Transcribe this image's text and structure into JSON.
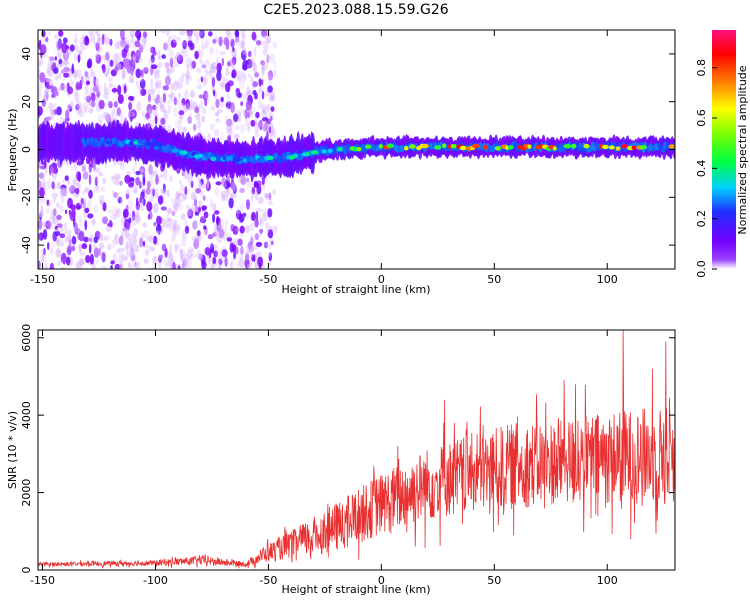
{
  "figure": {
    "title": "C2E5.2023.088.15.59.G26"
  },
  "chart_data": [
    {
      "type": "heatmap",
      "xlabel": "Height of straight line (km)",
      "ylabel": "Frequency (Hz)",
      "xlim": [
        -152,
        130
      ],
      "ylim": [
        -50,
        50
      ],
      "xticks": [
        -150,
        -100,
        -50,
        0,
        50,
        100
      ],
      "yticks": [
        -40,
        -20,
        0,
        20,
        40
      ],
      "colorbar": {
        "label": "Normalized spectral amplitude",
        "range": [
          0,
          0.95
        ],
        "ticks": [
          0.0,
          0.2,
          0.4,
          0.6,
          0.8
        ],
        "colormap": [
          "#ffffff",
          "#8000ff",
          "#2030ff",
          "#00d0ff",
          "#00ff40",
          "#80ff00",
          "#ffff00",
          "#ff8000",
          "#ff0000",
          "#ff1080"
        ]
      },
      "ridge": [
        {
          "x": -140,
          "f": 3
        },
        {
          "x": -120,
          "f": 3
        },
        {
          "x": -110,
          "f": 3
        },
        {
          "x": -100,
          "f": 2
        },
        {
          "x": -90,
          "f": -1
        },
        {
          "x": -80,
          "f": -3
        },
        {
          "x": -70,
          "f": -4
        },
        {
          "x": -60,
          "f": -4
        },
        {
          "x": -50,
          "f": -4
        },
        {
          "x": -40,
          "f": -3
        },
        {
          "x": -30,
          "f": -1
        },
        {
          "x": -20,
          "f": 0
        },
        {
          "x": 0,
          "f": 1
        },
        {
          "x": 50,
          "f": 1
        },
        {
          "x": 100,
          "f": 1
        },
        {
          "x": 130,
          "f": 1
        }
      ],
      "ridge_peak_amplitude": [
        {
          "x": -140,
          "a": 0.25
        },
        {
          "x": -110,
          "a": 0.35
        },
        {
          "x": -60,
          "a": 0.35
        },
        {
          "x": -30,
          "a": 0.45
        },
        {
          "x": -15,
          "a": 0.6
        },
        {
          "x": 0,
          "a": 0.8
        },
        {
          "x": 20,
          "a": 0.9
        },
        {
          "x": 60,
          "a": 0.85
        },
        {
          "x": 90,
          "a": 0.92
        },
        {
          "x": 130,
          "a": 0.9
        }
      ],
      "noise_region_xmax": -55
    },
    {
      "type": "line",
      "xlabel": "Height of straight line (km)",
      "ylabel": "SNR (10 * v/v)",
      "xlim": [
        -152,
        130
      ],
      "ylim": [
        0,
        6200
      ],
      "xticks": [
        -150,
        -100,
        -50,
        0,
        50,
        100
      ],
      "yticks": [
        0,
        2000,
        4000,
        6000
      ],
      "color": "#e83030",
      "envelope": [
        {
          "x": -150,
          "mean": 150,
          "amp": 60
        },
        {
          "x": -100,
          "mean": 180,
          "amp": 90
        },
        {
          "x": -80,
          "mean": 250,
          "amp": 150
        },
        {
          "x": -60,
          "mean": 150,
          "amp": 80
        },
        {
          "x": -50,
          "mean": 450,
          "amp": 300
        },
        {
          "x": -40,
          "mean": 650,
          "amp": 450
        },
        {
          "x": -20,
          "mean": 1100,
          "amp": 800
        },
        {
          "x": 0,
          "mean": 1700,
          "amp": 1000
        },
        {
          "x": 20,
          "mean": 2200,
          "amp": 1200
        },
        {
          "x": 40,
          "mean": 2500,
          "amp": 1300
        },
        {
          "x": 60,
          "mean": 2700,
          "amp": 1400
        },
        {
          "x": 80,
          "mean": 2800,
          "amp": 1400
        },
        {
          "x": 100,
          "mean": 2900,
          "amp": 1500
        },
        {
          "x": 130,
          "mean": 3000,
          "amp": 1600
        }
      ],
      "peaks": [
        {
          "x": 107,
          "value": 6200
        },
        {
          "x": 126,
          "value": 5900
        },
        {
          "x": 120,
          "value": 5200
        },
        {
          "x": 81,
          "value": 4900
        },
        {
          "x": 28,
          "value": 4400
        },
        {
          "x": 86,
          "value": 4800
        }
      ]
    }
  ]
}
